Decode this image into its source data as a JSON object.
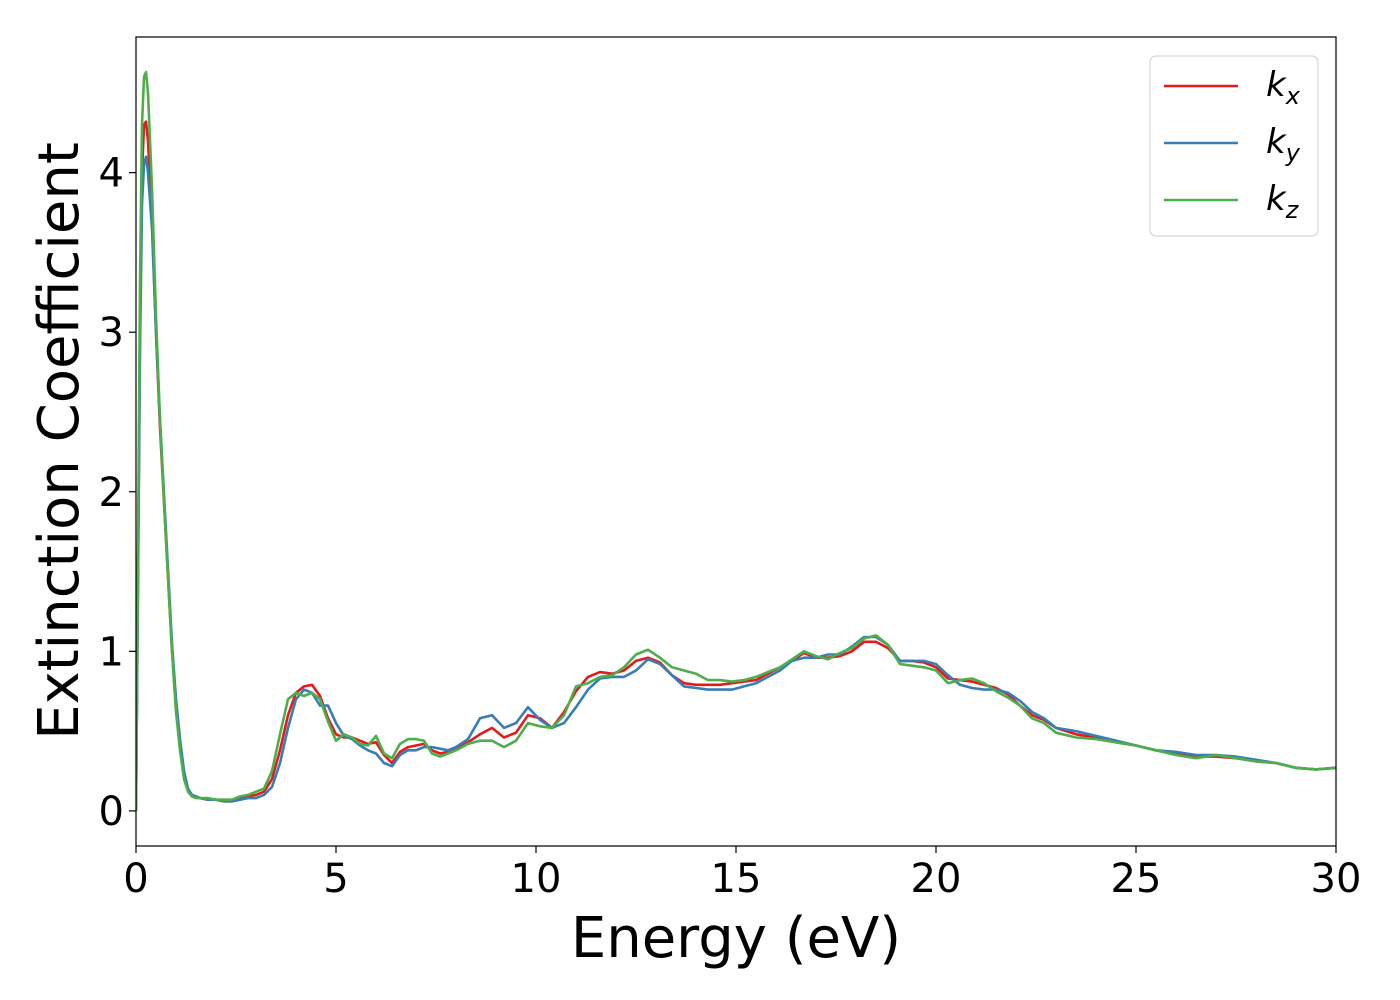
{
  "chart_data": {
    "type": "line",
    "title": "",
    "xlabel": "Energy (eV)",
    "ylabel": "Extinction Coefficient",
    "xlim": [
      0,
      30
    ],
    "ylim": [
      -0.22,
      4.85
    ],
    "xticks": [
      0,
      5,
      10,
      15,
      20,
      25,
      30
    ],
    "yticks": [
      0,
      1,
      2,
      3,
      4
    ],
    "grid": false,
    "legend_position": "top-right",
    "series": [
      {
        "name": "kx",
        "label_base": "k",
        "label_sub": "x",
        "color": "#e41a1c",
        "x": [
          0,
          0.05,
          0.1,
          0.15,
          0.2,
          0.25,
          0.3,
          0.4,
          0.5,
          0.6,
          0.75,
          0.9,
          1.0,
          1.1,
          1.2,
          1.3,
          1.4,
          1.5,
          1.6,
          1.8,
          2.0,
          2.2,
          2.4,
          2.6,
          2.8,
          3.0,
          3.2,
          3.4,
          3.6,
          3.8,
          4.0,
          4.2,
          4.4,
          4.6,
          4.8,
          5.0,
          5.2,
          5.4,
          5.6,
          5.8,
          6.0,
          6.2,
          6.4,
          6.6,
          6.8,
          7.0,
          7.2,
          7.4,
          7.6,
          7.8,
          8.0,
          8.3,
          8.6,
          8.9,
          9.2,
          9.5,
          9.8,
          10.1,
          10.4,
          10.7,
          11.0,
          11.3,
          11.6,
          11.9,
          12.2,
          12.5,
          12.8,
          13.1,
          13.4,
          13.7,
          14.0,
          14.3,
          14.6,
          14.9,
          15.2,
          15.5,
          15.8,
          16.1,
          16.4,
          16.7,
          17.0,
          17.3,
          17.6,
          17.9,
          18.2,
          18.5,
          18.8,
          19.1,
          19.4,
          19.7,
          20.0,
          20.3,
          20.6,
          20.9,
          21.2,
          21.5,
          21.8,
          22.1,
          22.4,
          22.7,
          23.0,
          23.5,
          24.0,
          24.5,
          25.0,
          25.5,
          26.0,
          26.5,
          27.0,
          27.5,
          28.0,
          28.5,
          29.0,
          29.5,
          30.0
        ],
        "y": [
          0.0,
          1.5,
          3.0,
          4.0,
          4.3,
          4.32,
          4.2,
          3.7,
          3.0,
          2.4,
          1.7,
          1.0,
          0.65,
          0.4,
          0.22,
          0.13,
          0.1,
          0.09,
          0.08,
          0.07,
          0.07,
          0.06,
          0.06,
          0.08,
          0.09,
          0.1,
          0.12,
          0.2,
          0.38,
          0.6,
          0.74,
          0.78,
          0.79,
          0.72,
          0.58,
          0.48,
          0.46,
          0.46,
          0.44,
          0.42,
          0.43,
          0.35,
          0.3,
          0.37,
          0.4,
          0.41,
          0.42,
          0.38,
          0.36,
          0.37,
          0.39,
          0.43,
          0.48,
          0.52,
          0.46,
          0.49,
          0.6,
          0.58,
          0.52,
          0.62,
          0.75,
          0.84,
          0.87,
          0.86,
          0.88,
          0.94,
          0.96,
          0.93,
          0.85,
          0.8,
          0.79,
          0.79,
          0.79,
          0.8,
          0.81,
          0.82,
          0.86,
          0.9,
          0.94,
          0.99,
          0.96,
          0.96,
          0.97,
          1.0,
          1.06,
          1.06,
          1.02,
          0.94,
          0.94,
          0.93,
          0.9,
          0.83,
          0.82,
          0.81,
          0.79,
          0.77,
          0.73,
          0.66,
          0.6,
          0.57,
          0.52,
          0.48,
          0.46,
          0.43,
          0.41,
          0.38,
          0.36,
          0.34,
          0.34,
          0.33,
          0.31,
          0.3,
          0.27,
          0.26,
          0.27
        ]
      },
      {
        "name": "ky",
        "label_base": "k",
        "label_sub": "y",
        "color": "#377eb8",
        "x": [
          0,
          0.05,
          0.1,
          0.15,
          0.2,
          0.25,
          0.3,
          0.4,
          0.5,
          0.6,
          0.75,
          0.9,
          1.0,
          1.1,
          1.2,
          1.3,
          1.4,
          1.5,
          1.6,
          1.8,
          2.0,
          2.2,
          2.4,
          2.6,
          2.8,
          3.0,
          3.2,
          3.4,
          3.6,
          3.8,
          4.0,
          4.2,
          4.4,
          4.6,
          4.8,
          5.0,
          5.2,
          5.4,
          5.6,
          5.8,
          6.0,
          6.2,
          6.4,
          6.6,
          6.8,
          7.0,
          7.2,
          7.4,
          7.6,
          7.8,
          8.0,
          8.3,
          8.6,
          8.9,
          9.2,
          9.5,
          9.8,
          10.1,
          10.4,
          10.7,
          11.0,
          11.3,
          11.6,
          11.9,
          12.2,
          12.5,
          12.8,
          13.1,
          13.4,
          13.7,
          14.0,
          14.3,
          14.6,
          14.9,
          15.2,
          15.5,
          15.8,
          16.1,
          16.4,
          16.7,
          17.0,
          17.3,
          17.6,
          17.9,
          18.2,
          18.5,
          18.8,
          19.1,
          19.4,
          19.7,
          20.0,
          20.3,
          20.6,
          20.9,
          21.2,
          21.5,
          21.8,
          22.1,
          22.4,
          22.7,
          23.0,
          23.5,
          24.0,
          24.5,
          25.0,
          25.5,
          26.0,
          26.5,
          27.0,
          27.5,
          28.0,
          28.5,
          29.0,
          29.5,
          30.0
        ],
        "y": [
          0.0,
          1.4,
          2.9,
          3.8,
          4.05,
          4.1,
          4.0,
          3.65,
          3.0,
          2.45,
          1.75,
          1.05,
          0.7,
          0.45,
          0.25,
          0.14,
          0.1,
          0.09,
          0.08,
          0.07,
          0.07,
          0.06,
          0.06,
          0.07,
          0.08,
          0.08,
          0.1,
          0.15,
          0.3,
          0.52,
          0.7,
          0.76,
          0.74,
          0.66,
          0.66,
          0.55,
          0.47,
          0.45,
          0.41,
          0.38,
          0.36,
          0.3,
          0.28,
          0.35,
          0.38,
          0.38,
          0.4,
          0.4,
          0.39,
          0.38,
          0.4,
          0.45,
          0.58,
          0.6,
          0.52,
          0.55,
          0.65,
          0.57,
          0.52,
          0.55,
          0.65,
          0.76,
          0.83,
          0.84,
          0.84,
          0.88,
          0.95,
          0.92,
          0.85,
          0.78,
          0.77,
          0.76,
          0.76,
          0.76,
          0.78,
          0.8,
          0.84,
          0.88,
          0.94,
          0.96,
          0.96,
          0.98,
          0.98,
          1.03,
          1.09,
          1.09,
          1.04,
          0.94,
          0.94,
          0.94,
          0.92,
          0.85,
          0.79,
          0.77,
          0.76,
          0.76,
          0.74,
          0.69,
          0.62,
          0.58,
          0.52,
          0.5,
          0.47,
          0.44,
          0.41,
          0.38,
          0.37,
          0.35,
          0.35,
          0.34,
          0.32,
          0.3,
          0.27,
          0.26,
          0.27
        ]
      },
      {
        "name": "kz",
        "label_base": "k",
        "label_sub": "z",
        "color": "#4daf4a",
        "x": [
          0,
          0.05,
          0.1,
          0.15,
          0.2,
          0.25,
          0.3,
          0.4,
          0.5,
          0.6,
          0.75,
          0.9,
          1.0,
          1.1,
          1.2,
          1.3,
          1.4,
          1.5,
          1.6,
          1.8,
          2.0,
          2.2,
          2.4,
          2.6,
          2.8,
          3.0,
          3.2,
          3.4,
          3.6,
          3.8,
          4.0,
          4.2,
          4.4,
          4.6,
          4.8,
          5.0,
          5.2,
          5.4,
          5.6,
          5.8,
          6.0,
          6.2,
          6.4,
          6.6,
          6.8,
          7.0,
          7.2,
          7.4,
          7.6,
          7.8,
          8.0,
          8.3,
          8.6,
          8.9,
          9.2,
          9.5,
          9.8,
          10.1,
          10.4,
          10.7,
          11.0,
          11.3,
          11.6,
          11.9,
          12.2,
          12.5,
          12.8,
          13.1,
          13.4,
          13.7,
          14.0,
          14.3,
          14.6,
          14.9,
          15.2,
          15.5,
          15.8,
          16.1,
          16.4,
          16.7,
          17.0,
          17.3,
          17.6,
          17.9,
          18.2,
          18.5,
          18.8,
          19.1,
          19.4,
          19.7,
          20.0,
          20.3,
          20.6,
          20.9,
          21.2,
          21.5,
          21.8,
          22.1,
          22.4,
          22.7,
          23.0,
          23.5,
          24.0,
          24.5,
          25.0,
          25.5,
          26.0,
          26.5,
          27.0,
          27.5,
          28.0,
          28.5,
          29.0,
          29.5,
          30.0
        ],
        "y": [
          0.0,
          1.6,
          3.3,
          4.3,
          4.6,
          4.63,
          4.5,
          3.9,
          3.1,
          2.45,
          1.7,
          1.0,
          0.62,
          0.38,
          0.2,
          0.12,
          0.09,
          0.08,
          0.08,
          0.08,
          0.07,
          0.07,
          0.07,
          0.09,
          0.1,
          0.12,
          0.14,
          0.25,
          0.48,
          0.7,
          0.74,
          0.72,
          0.74,
          0.7,
          0.56,
          0.44,
          0.48,
          0.46,
          0.42,
          0.41,
          0.47,
          0.36,
          0.33,
          0.42,
          0.45,
          0.45,
          0.44,
          0.36,
          0.34,
          0.36,
          0.38,
          0.42,
          0.44,
          0.44,
          0.4,
          0.44,
          0.55,
          0.53,
          0.52,
          0.6,
          0.78,
          0.8,
          0.84,
          0.85,
          0.9,
          0.98,
          1.01,
          0.96,
          0.9,
          0.88,
          0.86,
          0.82,
          0.82,
          0.81,
          0.82,
          0.84,
          0.87,
          0.9,
          0.95,
          1.0,
          0.97,
          0.95,
          0.99,
          1.02,
          1.08,
          1.1,
          1.04,
          0.92,
          0.91,
          0.9,
          0.88,
          0.8,
          0.82,
          0.83,
          0.8,
          0.75,
          0.71,
          0.66,
          0.58,
          0.55,
          0.49,
          0.46,
          0.45,
          0.43,
          0.41,
          0.38,
          0.35,
          0.33,
          0.35,
          0.33,
          0.31,
          0.3,
          0.27,
          0.26,
          0.27
        ]
      }
    ]
  }
}
